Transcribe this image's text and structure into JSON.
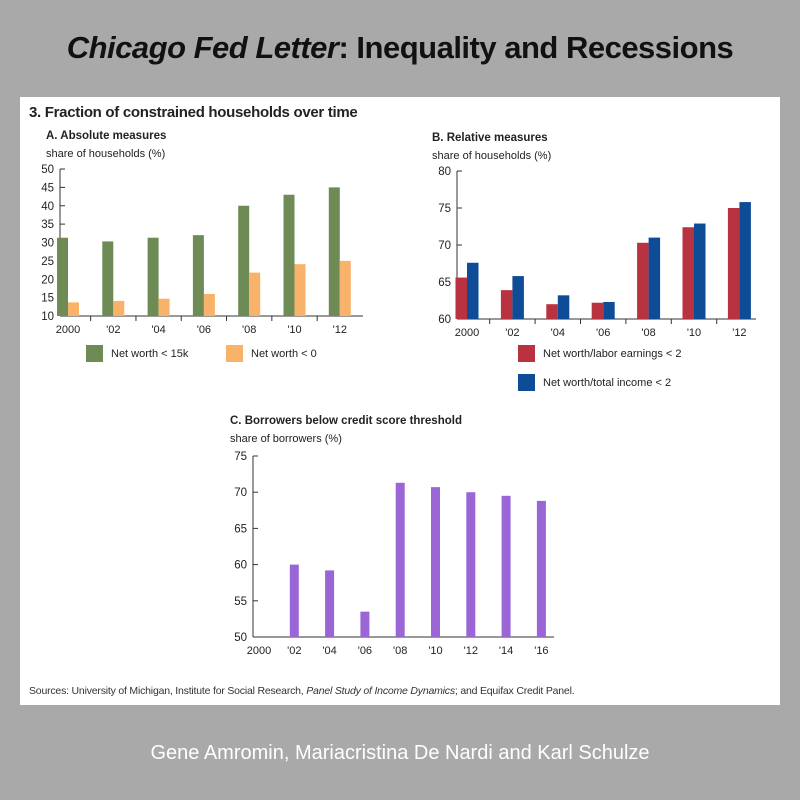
{
  "header": {
    "title_italic": "Chicago Fed Letter",
    "title_rest": ": Inequality and Recessions"
  },
  "figure": {
    "title": "3. Fraction of constrained households over time",
    "sources_prefix": "Sources: University of Michigan, Institute for Social Research, ",
    "sources_italic": "Panel Study of Income Dynamics",
    "sources_suffix": "; and Equifax Credit Panel."
  },
  "footer": {
    "authors": "Gene Amromin, Mariacristina De Nardi  and Karl Schulze"
  },
  "chart_data": [
    {
      "type": "bar",
      "title": "A. Absolute measures",
      "ylabel": "share of households (%)",
      "categories": [
        "2000",
        "'02",
        "'04",
        "'06",
        "'08",
        "'10",
        "'12"
      ],
      "ylim": [
        10,
        50
      ],
      "yticks": [
        10,
        15,
        20,
        25,
        30,
        35,
        40,
        45,
        50
      ],
      "legend_placement": "bottom",
      "series": [
        {
          "name": "Net worth < 15k",
          "color": "#6f8b55",
          "values": [
            31.3,
            30.3,
            31.3,
            32,
            40,
            43,
            45
          ]
        },
        {
          "name": "Net worth < 0",
          "color": "#f8b26a",
          "values": [
            13.7,
            14.1,
            14.7,
            16,
            21.8,
            24.1,
            25
          ]
        }
      ]
    },
    {
      "type": "bar",
      "title": "B. Relative measures",
      "ylabel": "share of households (%)",
      "categories": [
        "2000",
        "'02",
        "'04",
        "'06",
        "'08",
        "'10",
        "'12"
      ],
      "ylim": [
        60,
        80
      ],
      "yticks": [
        60,
        65,
        70,
        75,
        80
      ],
      "legend_placement": "bottom",
      "series": [
        {
          "name": "Net worth/labor earnings < 2",
          "color": "#b83240",
          "values": [
            65.6,
            63.9,
            62,
            62.2,
            70.3,
            72.4,
            75
          ]
        },
        {
          "name": "Net worth/total income < 2",
          "color": "#0f4c97",
          "values": [
            67.6,
            65.8,
            63.2,
            62.3,
            71,
            72.9,
            75.8
          ]
        }
      ]
    },
    {
      "type": "bar",
      "title": "C. Borrowers below credit score threshold",
      "ylabel": "share of borrowers (%)",
      "categories": [
        "2000",
        "'02",
        "'04",
        "'06",
        "'08",
        "'10",
        "'12",
        "'14",
        "'16"
      ],
      "ylim": [
        50,
        75
      ],
      "yticks": [
        50,
        55,
        60,
        65,
        70,
        75
      ],
      "series": [
        {
          "name": "",
          "color": "#9a66d6",
          "values": [
            null,
            60,
            59.2,
            53.5,
            71.3,
            70.7,
            70,
            69.5,
            68.8
          ]
        }
      ]
    }
  ]
}
